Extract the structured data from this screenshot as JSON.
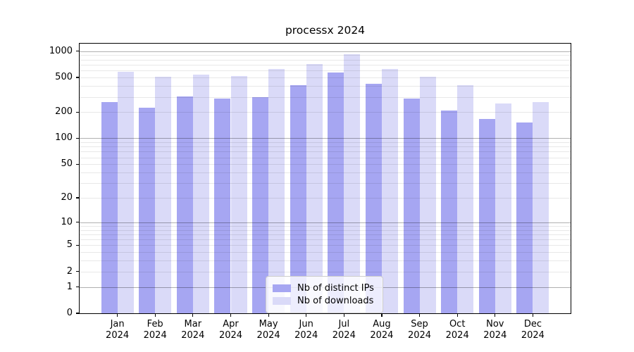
{
  "chart_data": {
    "type": "bar",
    "title": "processx 2024",
    "categories": [
      "Jan 2024",
      "Feb 2024",
      "Mar 2024",
      "Apr 2024",
      "May 2024",
      "Jun 2024",
      "Jul 2024",
      "Aug 2024",
      "Sep 2024",
      "Oct 2024",
      "Nov 2024",
      "Dec 2024"
    ],
    "series": [
      {
        "name": "Nb of distinct IPs",
        "color": "#a6a6f2",
        "values": [
          262,
          225,
          301,
          284,
          300,
          405,
          565,
          424,
          284,
          207,
          167,
          153
        ]
      },
      {
        "name": "Nb of downloads",
        "color": "#dadaf8",
        "values": [
          580,
          514,
          538,
          516,
          620,
          718,
          925,
          620,
          514,
          407,
          251,
          259
        ]
      }
    ],
    "xlabel": "",
    "ylabel": "",
    "yscale": "log1p",
    "yticks": [
      0,
      1,
      2,
      5,
      10,
      20,
      50,
      100,
      200,
      500,
      1000
    ],
    "ylim": [
      0,
      1220
    ],
    "grid": "horizontal major+minor, drawn over bars",
    "legend_position": "lower center",
    "colors": {
      "grid_major": "#b0b0b0",
      "grid_minor": "#e8e8e8",
      "axis": "#000000",
      "background": "#ffffff"
    }
  }
}
